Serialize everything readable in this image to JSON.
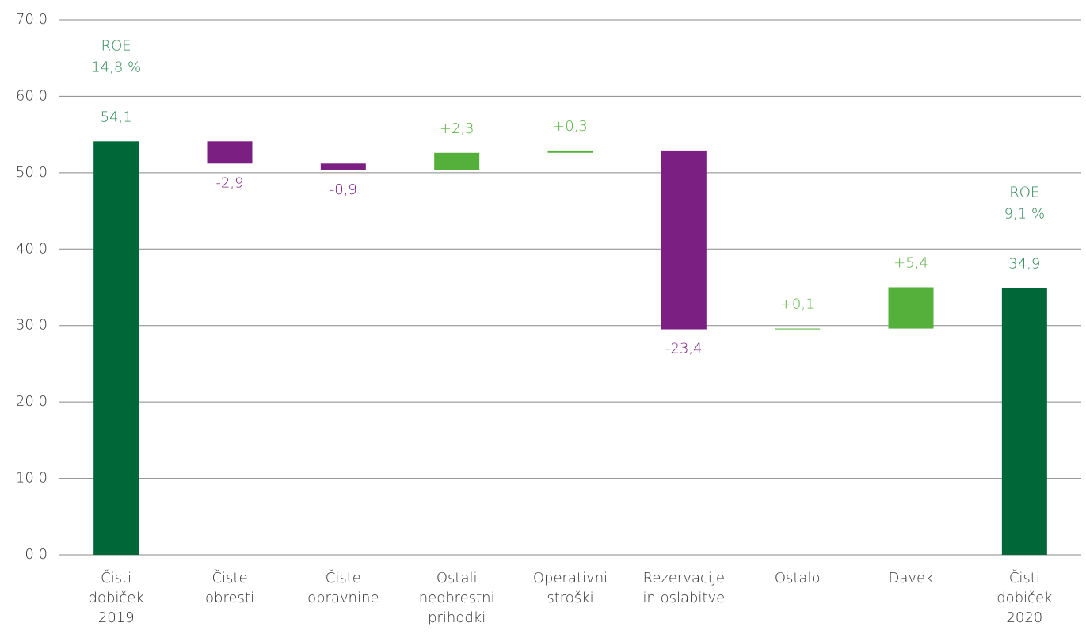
{
  "chart_data": {
    "type": "waterfall",
    "categories": [
      [
        "Čisti",
        "dobiček",
        "2019"
      ],
      [
        "Čiste",
        "obresti"
      ],
      [
        "Čiste",
        "opravnine"
      ],
      [
        "Ostali",
        "neobrestni",
        "prihodki"
      ],
      [
        "Operativni",
        "stroški"
      ],
      [
        "Rezervacije",
        "in oslabitve"
      ],
      [
        "Ostalo"
      ],
      [
        "Davek"
      ],
      [
        "Čisti",
        "dobiček",
        "2020"
      ]
    ],
    "values": [
      54.1,
      -2.9,
      -0.9,
      2.3,
      0.3,
      -23.4,
      0.1,
      5.4,
      34.9
    ],
    "value_labels": [
      "54,1",
      "-2,9",
      "-0,9",
      "+2,3",
      "+0,3",
      "-23,4",
      "+0,1",
      "+5,4",
      "34,9"
    ],
    "annotations": [
      [
        "ROE",
        "14,8 %"
      ],
      null,
      null,
      null,
      null,
      null,
      null,
      null,
      [
        "ROE",
        "9,1 %"
      ]
    ],
    "colors": {
      "total": "#006838",
      "decrease": "#7b1f82",
      "increase": "#54b03a"
    },
    "label_colors": {
      "total": "#2a8452",
      "decrease": "#7b1f82",
      "increase": "#54b03a"
    },
    "ylim": [
      0,
      70
    ],
    "yticks": [
      {
        "value": 0,
        "label": "0,0"
      },
      {
        "value": 10,
        "label": "10,0"
      },
      {
        "value": 20,
        "label": "20,0"
      },
      {
        "value": 30,
        "label": "30,0"
      },
      {
        "value": 40,
        "label": "40,0"
      },
      {
        "value": 50,
        "label": "50,0"
      },
      {
        "value": 60,
        "label": "60,0"
      },
      {
        "value": 70,
        "label": "70,0"
      }
    ],
    "grid": true
  }
}
